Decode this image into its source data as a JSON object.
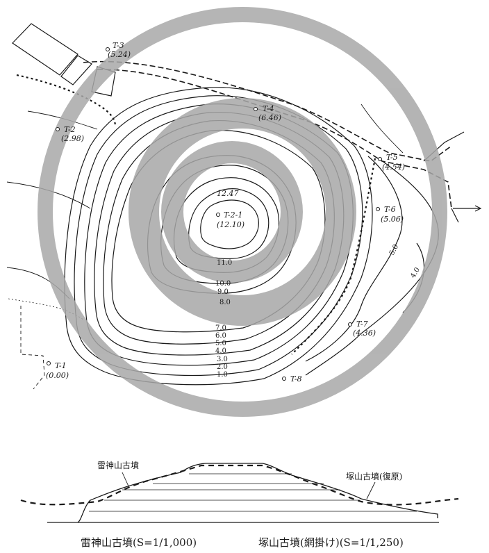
{
  "survey_points": [
    {
      "id": "T-3",
      "elev": "(5.24)"
    },
    {
      "id": "T-4",
      "elev": "(6.46)"
    },
    {
      "id": "T-2",
      "elev": "(2.98)"
    },
    {
      "id": "T-5",
      "elev": "(4.54)"
    },
    {
      "id": "T-6",
      "elev": "(5.06)"
    },
    {
      "id": "T-2-1",
      "elev": "(12.10)"
    },
    {
      "id": "T-7",
      "elev": "(4.36)"
    },
    {
      "id": "T-1",
      "elev": "(0.00)"
    },
    {
      "id": "T-8",
      "elev": ""
    }
  ],
  "summit_elevation": "12.47",
  "contour_labels": [
    "11.0",
    "10.0",
    "9.0",
    "8.0",
    "7.0",
    "6.0",
    "5.0",
    "4.0",
    "3.0",
    "2.0",
    "1.0"
  ],
  "side_contour_labels": [
    "5.0",
    "4.0"
  ],
  "profile": {
    "left_label": "雷神山古墳",
    "right_label": "塚山古墳(復原)"
  },
  "captions": {
    "left": "雷神山古墳(S=1/1,000)",
    "right": "塚山古墳(網掛け)(S=1/1,250)"
  },
  "colors": {
    "overlay": "#a8a8a8",
    "ink": "#1a1a1a"
  }
}
